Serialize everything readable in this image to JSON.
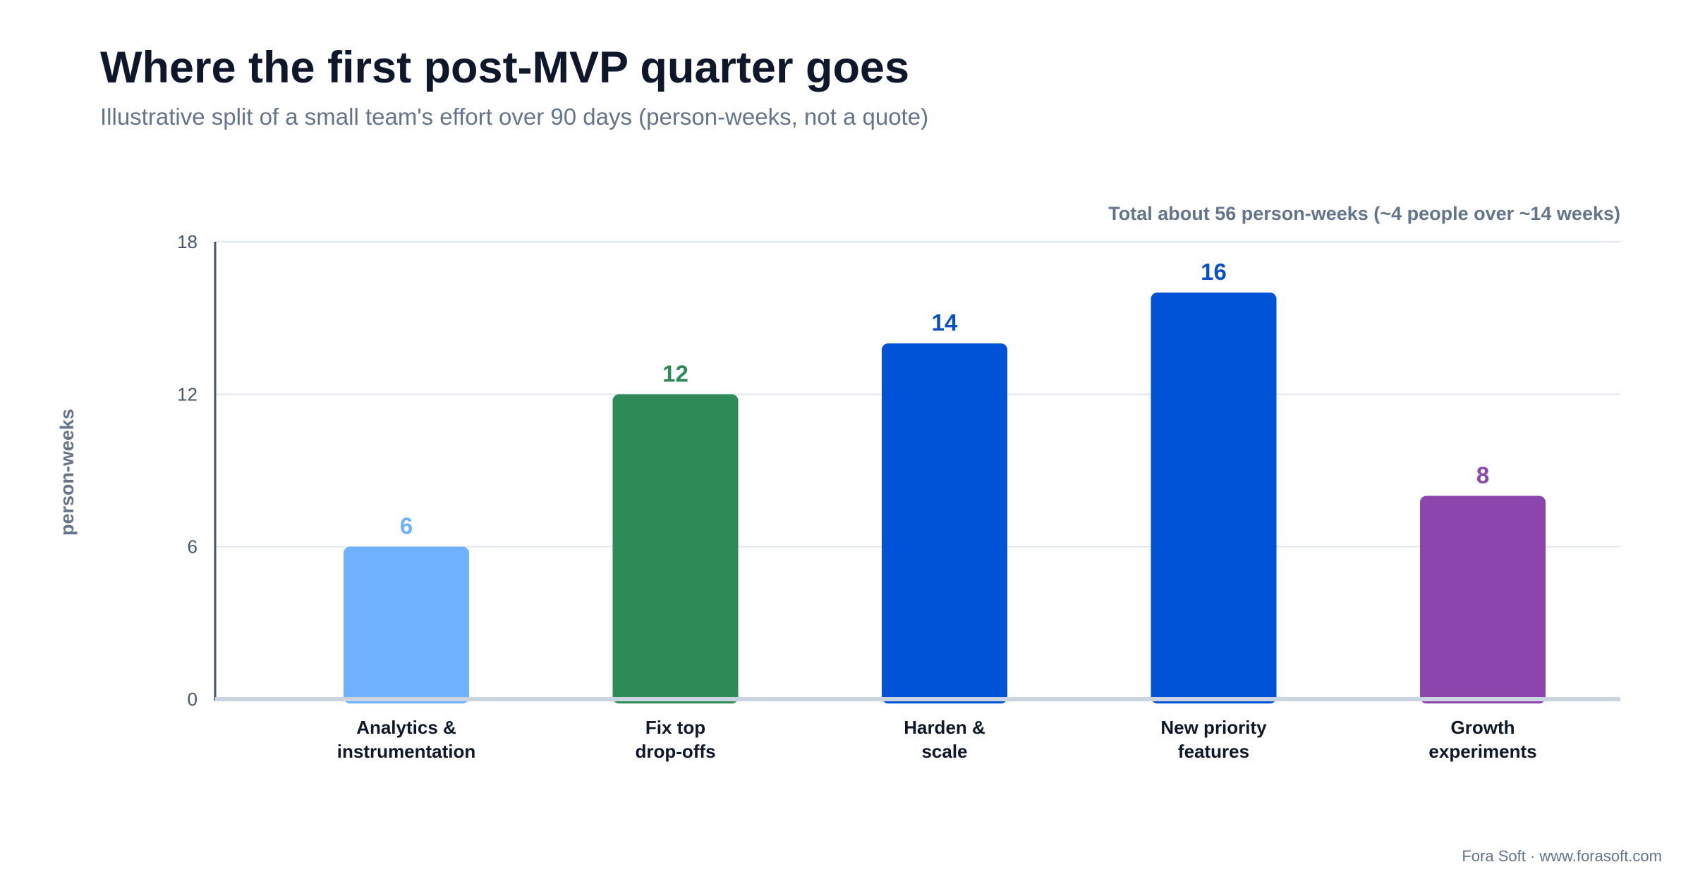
{
  "chart_data": {
    "type": "bar",
    "title": "Where the first post-MVP quarter goes",
    "subtitle": "Illustrative split of a small team's effort over 90 days (person-weeks, not a quote)",
    "annotation": "Total about 56 person-weeks (~4 people over ~14 weeks)",
    "xlabel": "",
    "ylabel": "person-weeks",
    "ylim": [
      0,
      18
    ],
    "yticks": [
      "0",
      "6",
      "12",
      "18"
    ],
    "grid": true,
    "categories": [
      [
        "Analytics &",
        "instrumentation"
      ],
      [
        "Fix top",
        "drop-offs"
      ],
      [
        "Harden &",
        "scale"
      ],
      [
        "New priority",
        "features"
      ],
      [
        "Growth",
        "experiments"
      ]
    ],
    "values": [
      6,
      12,
      14,
      16,
      8
    ],
    "value_labels": [
      "6",
      "12",
      "14",
      "16",
      "8"
    ],
    "colors": [
      "#6fb1ff",
      "#2e8b57",
      "#0052d6",
      "#0052d6",
      "#8b45ad"
    ],
    "label_colors": [
      "#6fb1ff",
      "#2e8b57",
      "#0a4fc4",
      "#0a4fc4",
      "#8b45ad"
    ]
  },
  "credit": "Fora Soft · www.forasoft.com"
}
